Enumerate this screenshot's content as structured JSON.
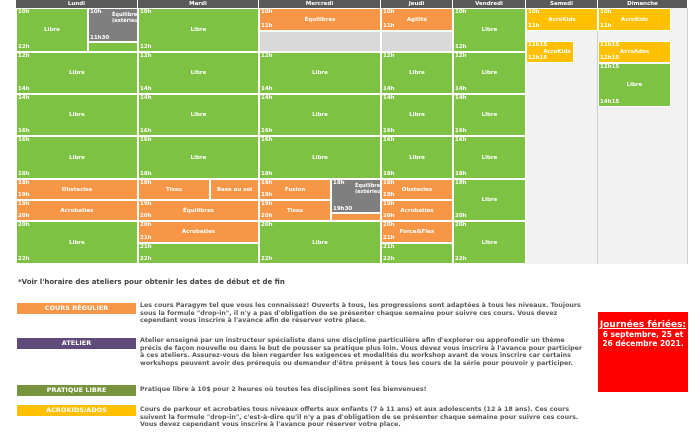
{
  "days": [
    "Lundi",
    "Mardi",
    "Mercredi",
    "Jeudi",
    "Vendredi",
    "Samedi",
    "Dimanche"
  ],
  "blocks": {
    "lundi_libre_1": {
      "start": "10h",
      "end": "12h",
      "label": "Libre"
    },
    "lundi_ext": {
      "start": "10h",
      "end": "11h30",
      "label": "Équilibres (extérieur)"
    },
    "lundi_libre_2": {
      "start": "12h",
      "end": "14h",
      "label": "Libre"
    },
    "lundi_libre_3": {
      "start": "14h",
      "end": "16h",
      "label": "Libre"
    },
    "lundi_libre_4": {
      "start": "16h",
      "end": "18h",
      "label": "Libre"
    },
    "lundi_obstacles": {
      "start": "18h",
      "end": "19h",
      "label": "Obstacles"
    },
    "lundi_acrobaties": {
      "start": "19h",
      "end": "20h",
      "label": "Acrobaties"
    },
    "lundi_libre_5": {
      "start": "20h",
      "end": "22h",
      "label": "Libre"
    },
    "mardi_libre_1": {
      "start": "10h",
      "end": "12h",
      "label": "Libre"
    },
    "mardi_libre_2": {
      "start": "12h",
      "end": "14h",
      "label": "Libre"
    },
    "mardi_libre_3": {
      "start": "14h",
      "end": "16h",
      "label": "Libre"
    },
    "mardi_libre_4": {
      "start": "16h",
      "end": "18h",
      "label": "Libre"
    },
    "mardi_tissu": {
      "start": "18h",
      "label": "Tissu"
    },
    "mardi_basesol": {
      "label": "Base au sol"
    },
    "mardi_equilibres": {
      "start": "19h",
      "end": "20h",
      "label": "Équilibres"
    },
    "mardi_acrobaties": {
      "start": "20h",
      "end": "21h",
      "label": "Acrobaties"
    },
    "mardi_libre_5": {
      "start": "21h",
      "end": "22h",
      "label": "Libre"
    },
    "mercredi_equilibres": {
      "start": "10h",
      "end": "11h",
      "label": "Équilibres"
    },
    "mercredi_gris": {
      "start": "11h"
    },
    "mercredi_libre_2": {
      "start": "12h",
      "end": "14h",
      "label": "Libre"
    },
    "mercredi_libre_3": {
      "start": "14h",
      "end": "16h",
      "label": "Libre"
    },
    "mercredi_libre_4": {
      "start": "16h",
      "end": "18h",
      "label": "Libre"
    },
    "mercredi_fusion": {
      "start": "18h",
      "end": "19h",
      "label": "Fusion"
    },
    "mercredi_tissu": {
      "start": "19h",
      "end": "20h",
      "label": "Tissu"
    },
    "mercredi_ext": {
      "start": "18h",
      "end": "19h30",
      "label": "Équilibres (extérieur)"
    },
    "mercredi_libre_5": {
      "start": "20h",
      "end": "22h",
      "label": "Libre"
    },
    "jeudi_agilite": {
      "start": "10h",
      "end": "11h",
      "label": "Agilité"
    },
    "jeudi_gris": {
      "start": "11h"
    },
    "jeudi_libre_2": {
      "start": "12h",
      "end": "14h",
      "label": "Libre"
    },
    "jeudi_libre_3": {
      "start": "14h",
      "end": "16h",
      "label": "Libre"
    },
    "jeudi_libre_4": {
      "start": "16h",
      "end": "18h",
      "label": "Libre"
    },
    "jeudi_obstacles": {
      "start": "18h",
      "end": "19h",
      "label": "Obstacles"
    },
    "jeudi_acrobaties": {
      "start": "19h",
      "end": "20h",
      "label": "Acrobaties"
    },
    "jeudi_forceflex": {
      "start": "20h",
      "end": "21h",
      "label": "Force&Flex"
    },
    "jeudi_libre_5": {
      "start": "21h",
      "end": "22h",
      "label": "Libre"
    },
    "vendredi_libre_1": {
      "start": "10h",
      "end": "12h",
      "label": "Libre"
    },
    "vendredi_libre_2": {
      "start": "12h",
      "end": "14h",
      "label": "Libre"
    },
    "vendredi_libre_3": {
      "start": "14h",
      "end": "16h",
      "label": "Libre"
    },
    "vendredi_libre_4": {
      "start": "16h",
      "end": "18h",
      "label": "Libre"
    },
    "vendredi_libre_5": {
      "start": "18h",
      "end": "20h",
      "label": "Libre"
    },
    "vendredi_libre_6": {
      "start": "20h",
      "end": "22h",
      "label": "Libre"
    },
    "samedi_acrokids": {
      "start": "10h",
      "end": "11h",
      "label": "AcroKids"
    },
    "samedi_acrokids2": {
      "start": "11h15",
      "end": "12h15",
      "label": "AcroKids"
    },
    "dimanche_acrokids": {
      "start": "10h",
      "end": "11h",
      "label": "AcroKids"
    },
    "dimanche_acroados": {
      "start": "11h15",
      "end": "12h15",
      "label": "AcroAdos"
    },
    "dimanche_libre": {
      "start": "12h15",
      "end": "14h15",
      "label": "Libre"
    }
  },
  "note": "*Voir l'horaire des ateliers pour obtenir les dates de début et de fin",
  "legend": [
    {
      "label": "COURS RÉGULIER",
      "color": "#f79646",
      "text": "Les cours Paragym tel que vous les connaissez! Ouverts à tous, les progressions sont adaptées à tous les niveaux. Toujours sous la formule \"drop-in\", il n'y a pas d'obligation de se présenter chaque semaine pour suivre ces cours. Vous devez cependant vous inscrire à l'avance afin de réserver votre place."
    },
    {
      "label": "ATELIER",
      "color": "#604a7b",
      "text": "Atelier enseigné par un instructeur spécialiste dans une discipline particulière afin d'explorer ou approfondir un thème précis de façon nouvelle ou dans le but de pousser sa pratique plus loin. Vous devez vous inscrire à l'avance pour participer à ces ateliers. Assurez-vous de bien regarder les exigences et modalités du workshop avant de vous inscrire car certains workshops peuvent avoir des prérequis ou demander d'être présent à tous les cours de la série pour pouvoir y participer."
    },
    {
      "label": "PRATIQUE LIBRE",
      "color": "#77933c",
      "text": "Pratique libre à 10$ pour 2 heures où toutes les disciplines sont les bienvenues!"
    },
    {
      "label": "ACROKIDS/ADOS",
      "color": "#ffc000",
      "text": "Cours de parkour et acrobaties tous niveaux offerts aux enfants (7 à 11 ans) et aux adolescents (12 à 18 ans). Ces cours suivent la formule \"drop-in\", c'est-à-dire qu'il n'y a pas d'obligation de se présenter chaque semaine pour suivre ces cours. Vous devez cependant vous inscrire à l'avance pour réserver votre place."
    }
  ],
  "holiday": {
    "title": "Journées fériées:",
    "body": "6 septembre, 25 et 26 décembre 2021."
  }
}
